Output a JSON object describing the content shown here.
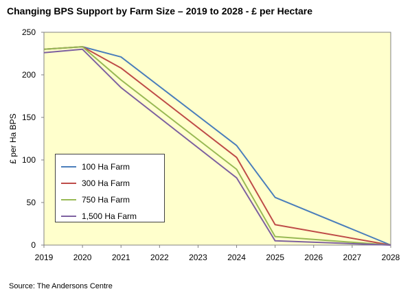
{
  "title": "Changing BPS Support by Farm Size – 2019 to 2028 - £ per Hectare",
  "source": "Source: The Andersons Centre",
  "chart_data": {
    "type": "line",
    "title": "Changing BPS Support by Farm Size – 2019 to 2028 - £ per Hectare",
    "xlabel": "",
    "ylabel": "£ per Ha BPS",
    "x": [
      2019,
      2020,
      2021,
      2022,
      2023,
      2024,
      2025,
      2026,
      2027,
      2028
    ],
    "ylim": [
      0,
      250
    ],
    "yticks": [
      0,
      50,
      100,
      150,
      200,
      250
    ],
    "grid": false,
    "background": "#ffffcc",
    "legend_position": "bottom-left",
    "series": [
      {
        "name": "100 Ha Farm",
        "color": "#4a7ebb",
        "x": [
          2019,
          2020,
          2021,
          2024,
          2025,
          2028
        ],
        "values": [
          230,
          233,
          221,
          117,
          56,
          0
        ]
      },
      {
        "name": "300 Ha Farm",
        "color": "#be4b48",
        "x": [
          2019,
          2020,
          2021,
          2024,
          2025,
          2028
        ],
        "values": [
          230,
          233,
          208,
          103,
          24,
          0
        ]
      },
      {
        "name": "750 Ha Farm",
        "color": "#98b954",
        "x": [
          2019,
          2020,
          2021,
          2024,
          2025,
          2028
        ],
        "values": [
          230,
          233,
          194,
          89,
          10,
          0
        ]
      },
      {
        "name": "1,500 Ha Farm",
        "color": "#7d60a0",
        "x": [
          2019,
          2020,
          2021,
          2024,
          2025,
          2028
        ],
        "values": [
          226,
          230,
          185,
          79,
          5,
          0
        ]
      }
    ]
  }
}
